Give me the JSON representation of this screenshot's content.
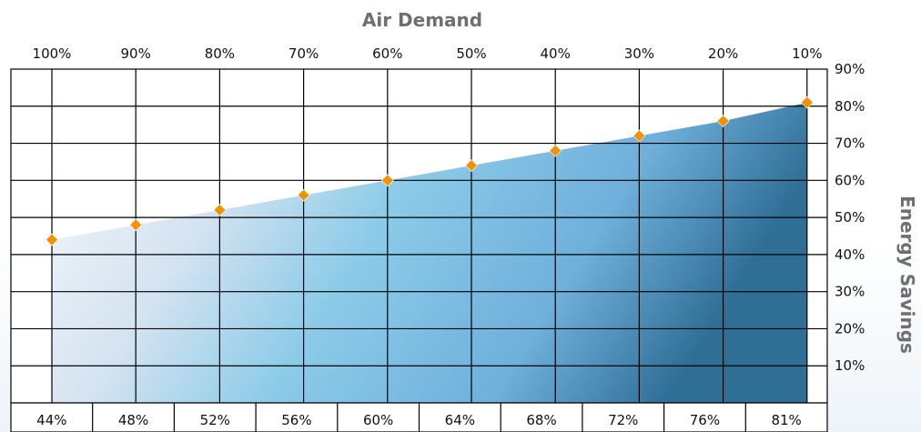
{
  "chart_data": {
    "type": "area",
    "title": "Air Demand",
    "ylabel": "Energy Savings",
    "x_top_ticks": [
      "100%",
      "90%",
      "80%",
      "70%",
      "60%",
      "50%",
      "40%",
      "30%",
      "20%",
      "10%"
    ],
    "bottom_values": [
      "44%",
      "48%",
      "52%",
      "56%",
      "60%",
      "64%",
      "68%",
      "72%",
      "76%",
      "81%"
    ],
    "y_ticks": [
      "90%",
      "80%",
      "70%",
      "60%",
      "50%",
      "40%",
      "30%",
      "20%",
      "10%"
    ],
    "ylim": [
      0,
      90
    ],
    "series": [
      {
        "x": [
          "100%",
          "90%",
          "80%",
          "70%",
          "60%",
          "50%",
          "40%",
          "30%",
          "20%",
          "10%"
        ],
        "values": [
          44,
          48,
          52,
          56,
          60,
          64,
          68,
          72,
          76,
          81
        ]
      }
    ],
    "colors": {
      "area_light": "#f4f7fb",
      "area_mid": "#8ccbe8",
      "area_dark": "#2f6f96",
      "marker": "#f39200",
      "grid": "#000000",
      "title_text": "#6f6f6f"
    },
    "grid": true
  }
}
